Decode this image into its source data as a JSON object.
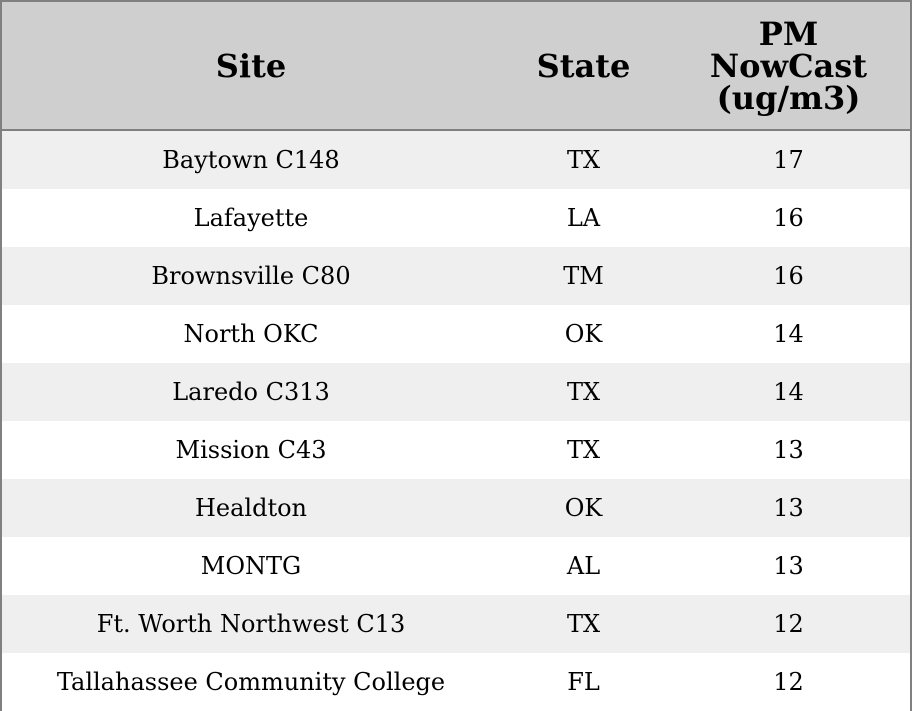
{
  "table": {
    "header": [
      "Site",
      "State",
      "PM\nNowCast\n(ug/m3)"
    ],
    "rows": [
      [
        "Baytown C148",
        "TX",
        17
      ],
      [
        "Lafayette",
        "LA",
        16
      ],
      [
        "Brownsville C80",
        "TM",
        16
      ],
      [
        "North OKC",
        "OK",
        14
      ],
      [
        "Laredo C313",
        "TX",
        14
      ],
      [
        "Mission C43",
        "TX",
        13
      ],
      [
        "Healdton",
        "OK",
        13
      ],
      [
        "MONTG",
        "AL",
        13
      ],
      [
        "Ft. Worth Northwest C13",
        "TX",
        12
      ],
      [
        "Tallahassee Community College",
        "FL",
        12
      ]
    ]
  }
}
